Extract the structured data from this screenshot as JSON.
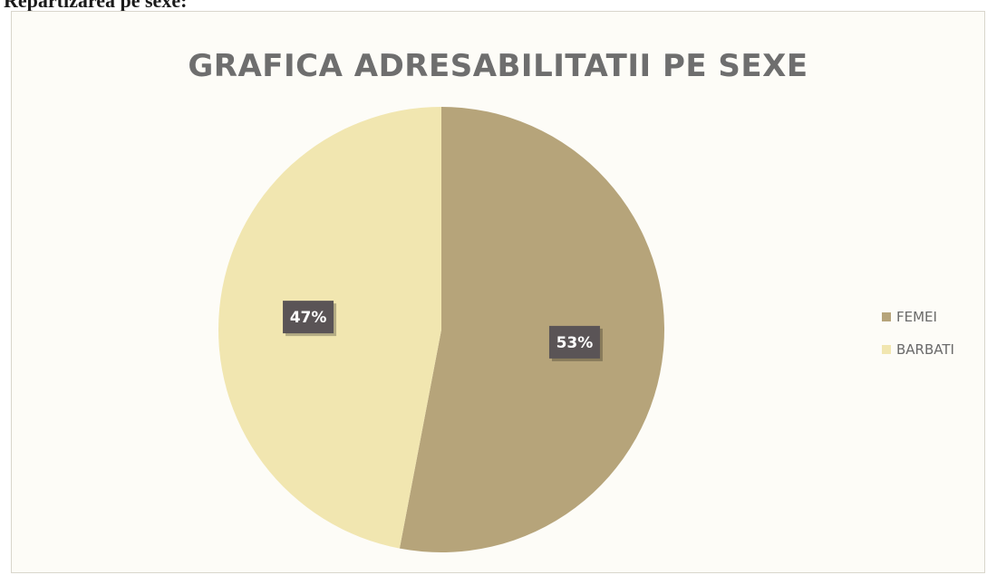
{
  "caption": "Repartizarea pe sexe:",
  "chart_data": {
    "type": "pie",
    "title": "GRAFICA ADRESABILITATII PE SEXE",
    "labels": [
      "FEMEI",
      "BARBATI"
    ],
    "values": [
      53,
      47
    ],
    "data_labels": [
      "53%",
      "47%"
    ],
    "colors": [
      "#b6a47a",
      "#f1e6b0"
    ],
    "legend_position": "right"
  }
}
